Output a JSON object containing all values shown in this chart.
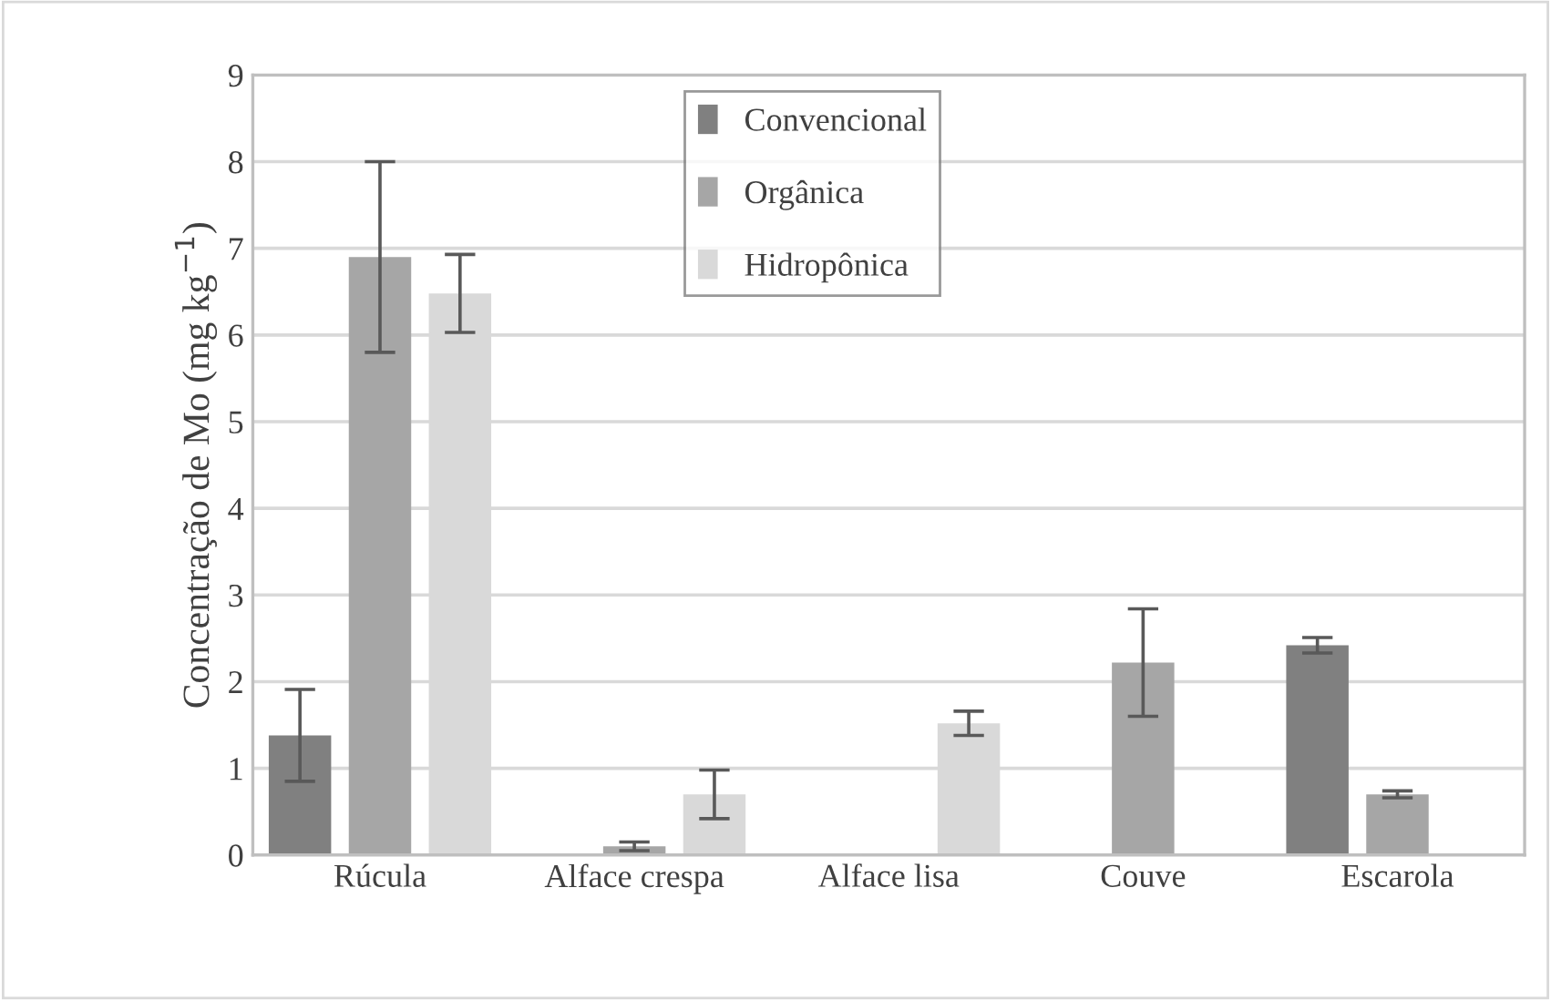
{
  "chart_data": {
    "type": "bar",
    "ylabel": "Concentração de Mo (mg kg$^{−1}$)",
    "categories": [
      "Rúcula",
      "Alface crespa",
      "Alface lisa",
      "Couve",
      "Escarola"
    ],
    "series": [
      {
        "name": "Convencional",
        "color": "#808080",
        "values": [
          1.38,
          0,
          0,
          0,
          2.42
        ],
        "errors": [
          0.53,
          null,
          null,
          null,
          0.09
        ]
      },
      {
        "name": "Orgânica",
        "color": "#a6a6a6",
        "values": [
          6.9,
          0.1,
          0,
          2.22,
          0.7
        ],
        "errors": [
          1.1,
          0.05,
          null,
          0.62,
          0.04
        ]
      },
      {
        "name": "Hidropônica",
        "color": "#d9d9d9",
        "values": [
          6.48,
          0.7,
          1.52,
          0,
          0
        ],
        "errors": [
          0.45,
          0.28,
          0.14,
          null,
          null
        ]
      }
    ],
    "ylim": [
      0,
      9
    ],
    "yticks": [
      0,
      1,
      2,
      3,
      4,
      5,
      6,
      7,
      8,
      9
    ],
    "grid": "y",
    "legend": "top"
  }
}
